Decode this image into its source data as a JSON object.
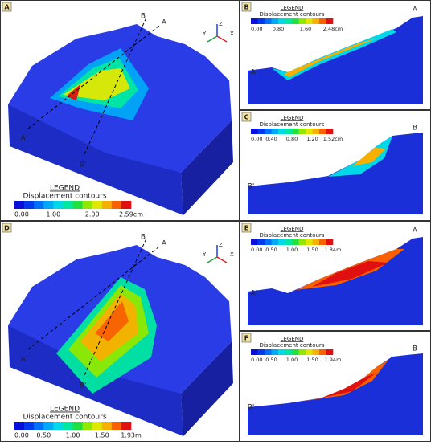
{
  "panels": [
    {
      "label": "A",
      "section_labels": [
        "B",
        "A",
        "A'",
        "B'"
      ],
      "axes": [
        "Z",
        "Y",
        "X"
      ],
      "legend": {
        "title": "LEGEND",
        "subtitle": "Displacement contours",
        "ticks": [
          "0.00",
          "1.00",
          "2.00",
          "2.59cm"
        ]
      }
    },
    {
      "label": "B",
      "section_labels": [
        "A",
        "A'"
      ],
      "legend": {
        "title": "LEGEND",
        "subtitle": "Displacement contours",
        "ticks": [
          "0.00",
          "0.80",
          "1.60",
          "2.48cm"
        ]
      }
    },
    {
      "label": "C",
      "section_labels": [
        "B",
        "B'"
      ],
      "legend": {
        "title": "LEGEND",
        "subtitle": "Displacement contours",
        "ticks": [
          "0.00",
          "0.40",
          "0.80",
          "1.20",
          "1.52cm"
        ]
      }
    },
    {
      "label": "D",
      "section_labels": [
        "B",
        "A",
        "A'",
        "B'"
      ],
      "axes": [
        "Z",
        "Y",
        "X"
      ],
      "legend": {
        "title": "LEGEND",
        "subtitle": "Displacement contours",
        "ticks": [
          "0.00",
          "0.50",
          "1.00",
          "1.50",
          "1.93m"
        ]
      }
    },
    {
      "label": "E",
      "section_labels": [
        "A",
        "A'"
      ],
      "legend": {
        "title": "LEGEND",
        "subtitle": "Displacement contours",
        "ticks": [
          "0.00",
          "0.50",
          "1.00",
          "1.50",
          "1.84m"
        ]
      }
    },
    {
      "label": "F",
      "section_labels": [
        "B",
        "B'"
      ],
      "legend": {
        "title": "LEGEND",
        "subtitle": "Displacement contours",
        "ticks": [
          "0.00",
          "0.50",
          "1.00",
          "1.50",
          "1.94m"
        ]
      }
    }
  ]
}
